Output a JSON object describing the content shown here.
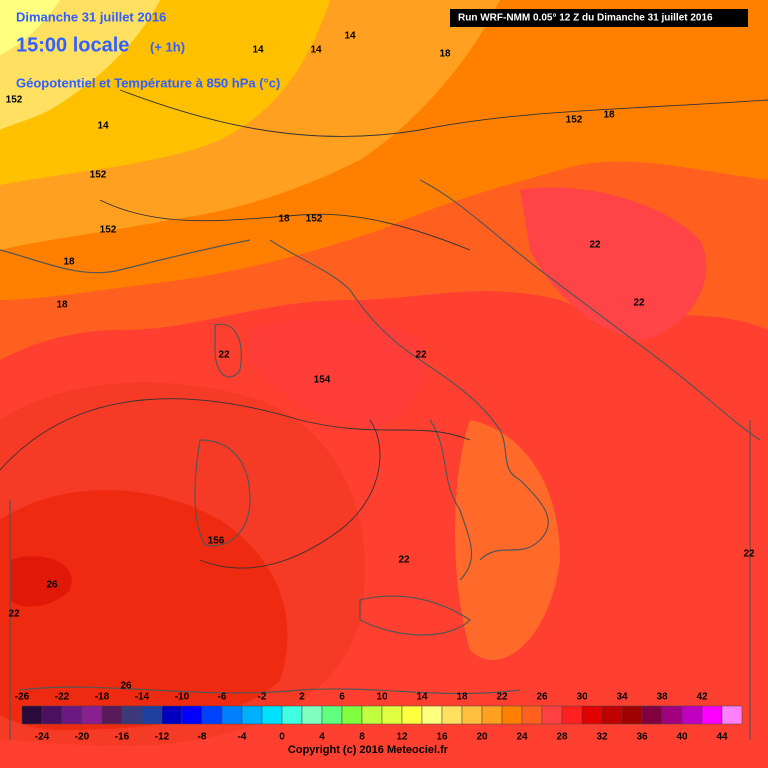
{
  "header": {
    "date": "Dimanche 31 juillet 2016",
    "time": "15:00 locale",
    "offset": "(+ 1h)",
    "field": "Géopotentiel et Température à 850 hPa (°c)",
    "run": "Run WRF-NMM 0.05° 12 Z du Dimanche 31 juillet 2016"
  },
  "contour_labels": [
    14,
    14,
    14,
    18,
    152,
    14,
    152,
    18,
    152,
    152,
    18,
    152,
    18,
    18,
    22,
    22,
    22,
    22,
    154,
    156,
    22,
    26,
    22,
    22,
    26
  ],
  "legend": {
    "top_ticks": [
      -26,
      -22,
      -18,
      -14,
      -10,
      -6,
      -2,
      2,
      6,
      10,
      14,
      18,
      22,
      26,
      30,
      34,
      38,
      42
    ],
    "bottom_ticks": [
      -24,
      -20,
      -16,
      -12,
      -8,
      -4,
      0,
      4,
      8,
      12,
      16,
      20,
      24,
      28,
      32,
      36,
      40,
      44
    ],
    "colors": [
      "#2a0a3a",
      "#4b1060",
      "#6a1a80",
      "#8a2090",
      "#5a1a5a",
      "#3a3a7a",
      "#2040a0",
      "#0000c0",
      "#0000ff",
      "#0040ff",
      "#0080ff",
      "#00b0ff",
      "#00e0ff",
      "#40ffe0",
      "#80ffc0",
      "#60ff80",
      "#80ff40",
      "#c0ff40",
      "#e0ff40",
      "#ffff40",
      "#ffff80",
      "#ffe060",
      "#ffc040",
      "#ffa020",
      "#ff8000",
      "#ff6020",
      "#ff4040",
      "#ff2020",
      "#e00000",
      "#c00000",
      "#a00000",
      "#800040",
      "#a00080",
      "#c000c0",
      "#ff00ff",
      "#ff80ff"
    ]
  },
  "footer": {
    "copyright": "Copyright (c) 2016 Meteociel.fr"
  }
}
